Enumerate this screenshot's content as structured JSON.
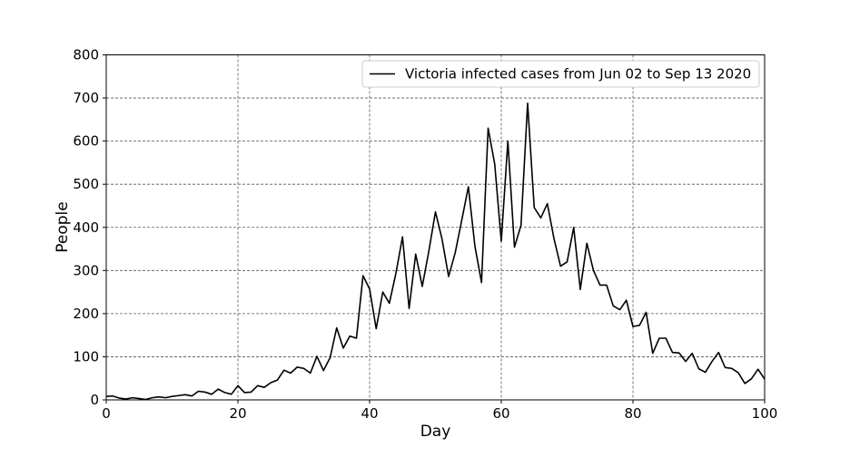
{
  "chart_data": {
    "type": "line",
    "xlabel": "Day",
    "ylabel": "People",
    "xlim": [
      0,
      100
    ],
    "ylim": [
      0,
      800
    ],
    "xticks": [
      0,
      20,
      40,
      60,
      80,
      100
    ],
    "yticks": [
      0,
      100,
      200,
      300,
      400,
      500,
      600,
      700,
      800
    ],
    "grid": true,
    "legend_position": "upper right",
    "series": [
      {
        "name": "Victoria infected cases from Jun 02 to Sep 13 2020",
        "color": "#000000",
        "x": [
          0,
          1,
          2,
          3,
          4,
          5,
          6,
          7,
          8,
          9,
          10,
          11,
          12,
          13,
          14,
          15,
          16,
          17,
          18,
          19,
          20,
          21,
          22,
          23,
          24,
          25,
          26,
          27,
          28,
          29,
          30,
          31,
          32,
          33,
          34,
          35,
          36,
          37,
          38,
          39,
          40,
          41,
          42,
          43,
          44,
          45,
          46,
          47,
          48,
          49,
          50,
          51,
          52,
          53,
          54,
          55,
          56,
          57,
          58,
          59,
          60,
          61,
          62,
          63,
          64,
          65,
          66,
          67,
          68,
          69,
          70,
          71,
          72,
          73,
          74,
          75,
          76,
          77,
          78,
          79,
          80,
          81,
          82,
          83,
          84,
          85,
          86,
          87,
          88,
          89,
          90,
          91,
          92,
          93,
          94,
          95,
          96,
          97,
          98,
          99,
          100
        ],
        "y": [
          8,
          9,
          4,
          2,
          5,
          3,
          1,
          5,
          7,
          5,
          8,
          10,
          12,
          9,
          20,
          18,
          13,
          25,
          17,
          13,
          33,
          17,
          18,
          33,
          29,
          40,
          46,
          69,
          62,
          76,
          73,
          62,
          101,
          68,
          98,
          167,
          120,
          148,
          143,
          288,
          257,
          165,
          250,
          224,
          294,
          378,
          212,
          338,
          263,
          345,
          436,
          373,
          286,
          341,
          417,
          494,
          356,
          272,
          630,
          547,
          368,
          600,
          354,
          405,
          688,
          446,
          422,
          455,
          374,
          310,
          320,
          400,
          256,
          363,
          300,
          266,
          266,
          218,
          209,
          231,
          170,
          173,
          203,
          108,
          143,
          143,
          110,
          109,
          89,
          108,
          72,
          64,
          89,
          110,
          75,
          73,
          63,
          38,
          49,
          71,
          48
        ]
      }
    ]
  }
}
